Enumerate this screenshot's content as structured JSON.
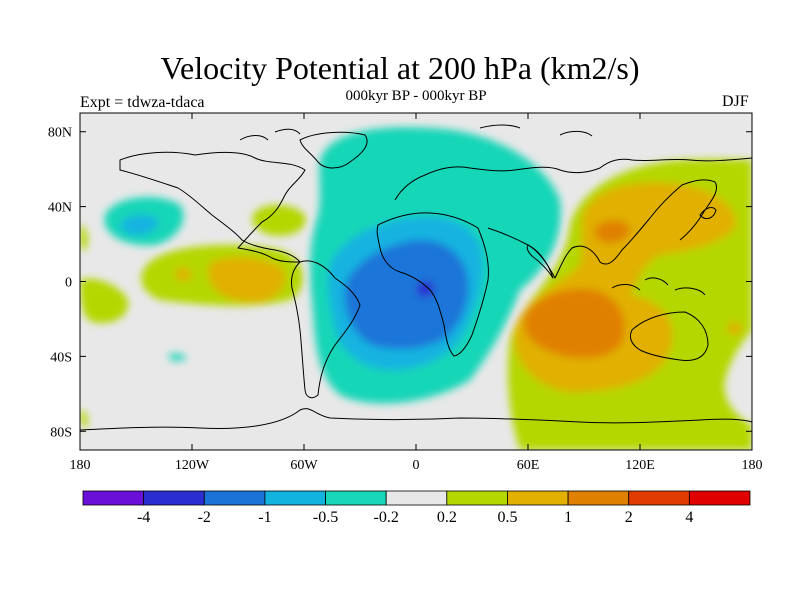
{
  "title": "Velocity Potential at 200 hPa (km2/s)",
  "subtitle": "000kyr BP - 000kyr BP",
  "experiment": "Expt = tdwza-tdaca",
  "season": "DJF",
  "map": {
    "projection": "cylindrical equidistant",
    "lon_range": [
      -180,
      180
    ],
    "lat_range": [
      -90,
      90
    ],
    "land_outline": true,
    "x_ticks": [
      {
        "lon": -180,
        "label": "180"
      },
      {
        "lon": -120,
        "label": "120W"
      },
      {
        "lon": -60,
        "label": "60W"
      },
      {
        "lon": 0,
        "label": "0"
      },
      {
        "lon": 60,
        "label": "60E"
      },
      {
        "lon": 120,
        "label": "120E"
      },
      {
        "lon": 180,
        "label": "180"
      }
    ],
    "y_ticks": [
      {
        "lat": 80,
        "label": "80N"
      },
      {
        "lat": 40,
        "label": "40N"
      },
      {
        "lat": 0,
        "label": "0"
      },
      {
        "lat": -40,
        "label": "40S"
      },
      {
        "lat": -80,
        "label": "80S"
      }
    ]
  },
  "colorbar": {
    "colors": [
      "#6a0fd8",
      "#2a2ed0",
      "#1a74d8",
      "#13b3e0",
      "#18d6b8",
      "#e8e8e8",
      "#b5d700",
      "#e1b000",
      "#e08000",
      "#e03c00",
      "#e00000"
    ],
    "levels": [
      "-4",
      "-2",
      "-1",
      "-0.5",
      "-0.2",
      "0.2",
      "0.5",
      "1",
      "2",
      "4"
    ]
  },
  "field_features": [
    {
      "lon": -45,
      "lat": -5,
      "color_index": 2,
      "sign": "negative"
    },
    {
      "lon": 5,
      "lat": -3,
      "color_index": 1,
      "sign": "negative"
    },
    {
      "lon": 100,
      "lat": -20,
      "color_index": 8,
      "sign": "positive"
    },
    {
      "lon": 110,
      "lat": 30,
      "color_index": 8,
      "sign": "positive"
    },
    {
      "lon": -100,
      "lat": 0,
      "color_index": 7,
      "sign": "positive"
    },
    {
      "lon": -150,
      "lat": 30,
      "color_index": 3,
      "sign": "negative"
    }
  ]
}
